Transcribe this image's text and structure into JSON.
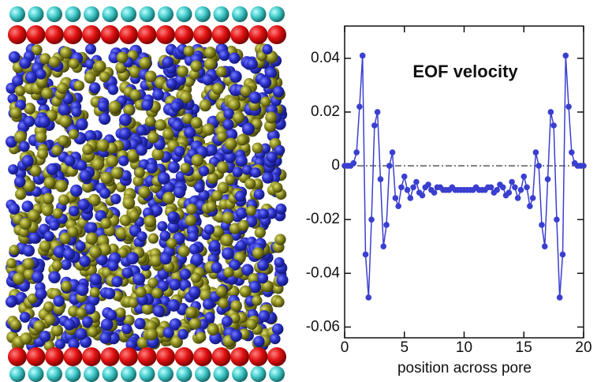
{
  "chart_data": {
    "type": "line",
    "title": "EOF velocity",
    "xlabel": "position across pore",
    "x": [
      0,
      0.25,
      0.5,
      0.75,
      1,
      1.25,
      1.5,
      1.75,
      2,
      2.25,
      2.5,
      2.75,
      3,
      3.25,
      3.5,
      3.75,
      4,
      4.25,
      4.5,
      4.75,
      5,
      5.25,
      5.5,
      5.75,
      6,
      6.25,
      6.5,
      6.75,
      7,
      7.25,
      7.5,
      7.75,
      8,
      8.25,
      8.5,
      8.75,
      9,
      9.25,
      9.5,
      9.75,
      10,
      10.25,
      10.5,
      10.75,
      11,
      11.25,
      11.5,
      11.75,
      12,
      12.25,
      12.5,
      12.75,
      13,
      13.25,
      13.5,
      13.75,
      14,
      14.25,
      14.5,
      14.75,
      15,
      15.25,
      15.5,
      15.75,
      16,
      16.25,
      16.5,
      16.75,
      17,
      17.25,
      17.5,
      17.75,
      18,
      18.25,
      18.5,
      18.75,
      19,
      19.25,
      19.5,
      19.75,
      20
    ],
    "values": [
      0,
      0,
      0,
      0.001,
      0.005,
      0.022,
      0.041,
      -0.033,
      -0.049,
      -0.02,
      0.015,
      0.02,
      -0.005,
      -0.03,
      -0.022,
      0,
      0.005,
      -0.012,
      -0.015,
      -0.008,
      -0.004,
      -0.009,
      -0.012,
      -0.008,
      -0.006,
      -0.01,
      -0.011,
      -0.008,
      -0.007,
      -0.009,
      -0.01,
      -0.008,
      -0.008,
      -0.009,
      -0.009,
      -0.009,
      -0.008,
      -0.009,
      -0.009,
      -0.009,
      -0.009,
      -0.009,
      -0.009,
      -0.009,
      -0.008,
      -0.009,
      -0.009,
      -0.009,
      -0.008,
      -0.008,
      -0.01,
      -0.009,
      -0.007,
      -0.008,
      -0.011,
      -0.01,
      -0.006,
      -0.008,
      -0.012,
      -0.009,
      -0.004,
      -0.008,
      -0.015,
      -0.012,
      0.005,
      0,
      -0.022,
      -0.03,
      -0.005,
      0.02,
      0.015,
      -0.02,
      -0.049,
      -0.033,
      0.041,
      0.022,
      0.005,
      0.001,
      0,
      0,
      0
    ],
    "color": "#3a3fcf",
    "xlim": [
      0,
      20
    ],
    "xticks": [
      0,
      5,
      10,
      15,
      20
    ],
    "ylim": [
      -0.064,
      0.052
    ],
    "yticks": [
      0.04,
      0.02,
      0,
      -0.02,
      -0.04,
      -0.06
    ],
    "hline": 0
  }
}
